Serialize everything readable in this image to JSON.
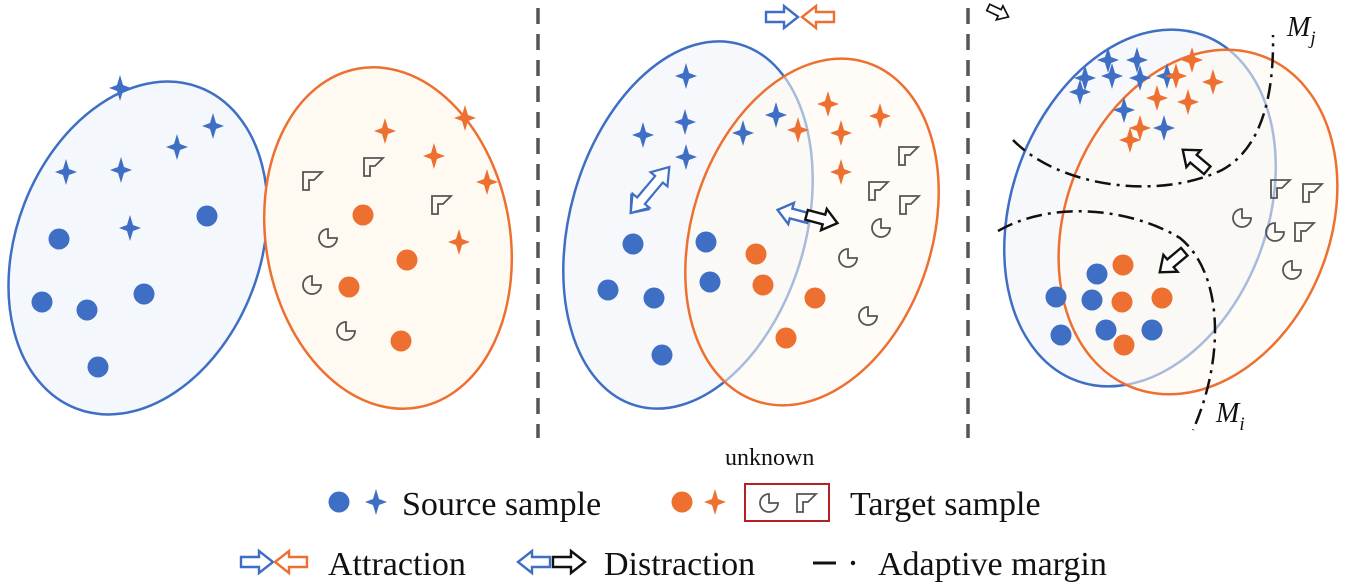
{
  "legend": {
    "unknown_label": "unknown",
    "source_sample": "Source sample",
    "target_sample": "Target sample",
    "attraction": "Attraction",
    "distraction": "Distraction",
    "adaptive_margin": "Adaptive margin"
  },
  "margins": {
    "j_base": "M",
    "j_sub": "j",
    "i_base": "M",
    "i_sub": "i"
  },
  "colors": {
    "source": "#3f6fc4",
    "source_fill": "#f4f7fc",
    "target": "#ed7031",
    "target_fill": "#fffaf1",
    "unknown_stroke": "#555555",
    "divider": "#555555",
    "legend_box": "#b22222",
    "arrow_dark": "#111111"
  },
  "icons": {
    "source_point": "filled-circle",
    "source_star": "four-point-star",
    "target_point": "filled-circle",
    "target_star": "four-point-star",
    "unknown_a": "pacman-circle-icon",
    "unknown_b": "flag-corner-icon"
  }
}
